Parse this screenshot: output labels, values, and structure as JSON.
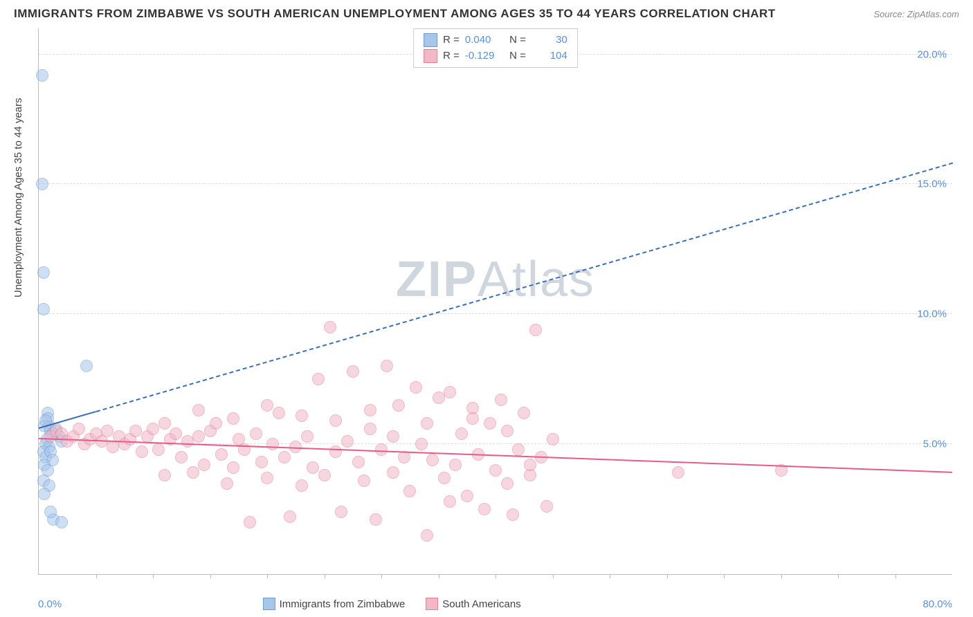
{
  "title": "IMMIGRANTS FROM ZIMBABWE VS SOUTH AMERICAN UNEMPLOYMENT AMONG AGES 35 TO 44 YEARS CORRELATION CHART",
  "source": "Source: ZipAtlas.com",
  "watermark_a": "ZIP",
  "watermark_b": "Atlas",
  "chart": {
    "type": "scatter",
    "background_color": "#ffffff",
    "grid_color": "#dddddd",
    "axis_color": "#bbbbbb",
    "tick_label_color": "#5b8fd6",
    "y_label": "Unemployment Among Ages 35 to 44 years",
    "y_label_fontsize": 15,
    "xlim": [
      0,
      80
    ],
    "ylim": [
      0,
      21
    ],
    "x_tick_step": 5,
    "y_ticks": [
      5,
      10,
      15,
      20
    ],
    "y_tick_labels": [
      "5.0%",
      "10.0%",
      "15.0%",
      "20.0%"
    ],
    "x_min_label": "0.0%",
    "x_max_label": "80.0%",
    "point_radius": 9,
    "point_opacity": 0.55,
    "series": [
      {
        "name": "Immigrants from Zimbabwe",
        "color_fill": "#a8c5ea",
        "color_stroke": "#6b9bd1",
        "r_label": "R =",
        "r_value": "0.040",
        "n_label": "N =",
        "n_value": "30",
        "trend": {
          "x1": 0,
          "y1": 5.6,
          "x2": 80,
          "y2": 15.8,
          "solid_until_x": 5,
          "color": "#3a6fb5",
          "width": 2
        },
        "points": [
          [
            0.3,
            19.2
          ],
          [
            0.3,
            15.0
          ],
          [
            0.4,
            11.6
          ],
          [
            0.4,
            10.2
          ],
          [
            0.8,
            6.2
          ],
          [
            0.8,
            6.0
          ],
          [
            0.9,
            5.7
          ],
          [
            4.2,
            8.0
          ],
          [
            0.5,
            5.7
          ],
          [
            1.0,
            5.5
          ],
          [
            1.2,
            5.4
          ],
          [
            0.7,
            5.2
          ],
          [
            0.6,
            5.0
          ],
          [
            0.9,
            4.9
          ],
          [
            1.5,
            5.6
          ],
          [
            1.8,
            5.3
          ],
          [
            2.0,
            5.1
          ],
          [
            0.4,
            4.7
          ],
          [
            0.6,
            4.5
          ],
          [
            1.0,
            4.7
          ],
          [
            1.2,
            4.4
          ],
          [
            0.5,
            4.2
          ],
          [
            0.8,
            4.0
          ],
          [
            0.4,
            3.6
          ],
          [
            0.9,
            3.4
          ],
          [
            0.5,
            3.1
          ],
          [
            1.3,
            2.1
          ],
          [
            2.0,
            2.0
          ],
          [
            1.0,
            2.4
          ],
          [
            0.6,
            5.9
          ]
        ]
      },
      {
        "name": "South Americans",
        "color_fill": "#f2b8c6",
        "color_stroke": "#e87a9a",
        "r_label": "R =",
        "r_value": "-0.129",
        "n_label": "N =",
        "n_value": "104",
        "trend": {
          "x1": 0,
          "y1": 5.2,
          "x2": 80,
          "y2": 3.9,
          "solid_until_x": 80,
          "color": "#e85a88",
          "width": 2.5
        },
        "points": [
          [
            1,
            5.3
          ],
          [
            1.5,
            5.5
          ],
          [
            2,
            5.4
          ],
          [
            2.5,
            5.1
          ],
          [
            3,
            5.3
          ],
          [
            3.5,
            5.6
          ],
          [
            4,
            5.0
          ],
          [
            4.5,
            5.2
          ],
          [
            5,
            5.4
          ],
          [
            5.5,
            5.1
          ],
          [
            6,
            5.5
          ],
          [
            6.5,
            4.9
          ],
          [
            7,
            5.3
          ],
          [
            7.5,
            5.0
          ],
          [
            8,
            5.2
          ],
          [
            8.5,
            5.5
          ],
          [
            9,
            4.7
          ],
          [
            9.5,
            5.3
          ],
          [
            10,
            5.6
          ],
          [
            10.5,
            4.8
          ],
          [
            11,
            3.8
          ],
          [
            11.5,
            5.2
          ],
          [
            12,
            5.4
          ],
          [
            12.5,
            4.5
          ],
          [
            13,
            5.1
          ],
          [
            13.5,
            3.9
          ],
          [
            14,
            5.3
          ],
          [
            14.5,
            4.2
          ],
          [
            15,
            5.5
          ],
          [
            15.5,
            5.8
          ],
          [
            16,
            4.6
          ],
          [
            16.5,
            3.5
          ],
          [
            17,
            4.1
          ],
          [
            17.5,
            5.2
          ],
          [
            18,
            4.8
          ],
          [
            18.5,
            2.0
          ],
          [
            19,
            5.4
          ],
          [
            19.5,
            4.3
          ],
          [
            20,
            3.7
          ],
          [
            20.5,
            5.0
          ],
          [
            21,
            6.2
          ],
          [
            21.5,
            4.5
          ],
          [
            22,
            2.2
          ],
          [
            22.5,
            4.9
          ],
          [
            23,
            3.4
          ],
          [
            23.5,
            5.3
          ],
          [
            24,
            4.1
          ],
          [
            24.5,
            7.5
          ],
          [
            25,
            3.8
          ],
          [
            25.5,
            9.5
          ],
          [
            26,
            4.7
          ],
          [
            26.5,
            2.4
          ],
          [
            27,
            5.1
          ],
          [
            27.5,
            7.8
          ],
          [
            28,
            4.3
          ],
          [
            28.5,
            3.6
          ],
          [
            29,
            5.6
          ],
          [
            29.5,
            2.1
          ],
          [
            30,
            4.8
          ],
          [
            30.5,
            8.0
          ],
          [
            31,
            3.9
          ],
          [
            31.5,
            6.5
          ],
          [
            32,
            4.5
          ],
          [
            32.5,
            3.2
          ],
          [
            33,
            7.2
          ],
          [
            33.5,
            5.0
          ],
          [
            34,
            1.5
          ],
          [
            34.5,
            4.4
          ],
          [
            35,
            6.8
          ],
          [
            35.5,
            3.7
          ],
          [
            36,
            7.0
          ],
          [
            36.5,
            4.2
          ],
          [
            37,
            5.4
          ],
          [
            37.5,
            3.0
          ],
          [
            38,
            6.4
          ],
          [
            38.5,
            4.6
          ],
          [
            39,
            2.5
          ],
          [
            39.5,
            5.8
          ],
          [
            40,
            4.0
          ],
          [
            40.5,
            6.7
          ],
          [
            41,
            3.5
          ],
          [
            41.5,
            2.3
          ],
          [
            42,
            4.8
          ],
          [
            42.5,
            6.2
          ],
          [
            43,
            3.8
          ],
          [
            43.5,
            9.4
          ],
          [
            44,
            4.5
          ],
          [
            44.5,
            2.6
          ],
          [
            45,
            5.2
          ],
          [
            56,
            3.9
          ],
          [
            38,
            6.0
          ],
          [
            41,
            5.5
          ],
          [
            43,
            4.2
          ],
          [
            34,
            5.8
          ],
          [
            36,
            2.8
          ],
          [
            29,
            6.3
          ],
          [
            31,
            5.3
          ],
          [
            26,
            5.9
          ],
          [
            23,
            6.1
          ],
          [
            20,
            6.5
          ],
          [
            17,
            6.0
          ],
          [
            14,
            6.3
          ],
          [
            11,
            5.8
          ],
          [
            65,
            4.0
          ]
        ]
      }
    ]
  }
}
